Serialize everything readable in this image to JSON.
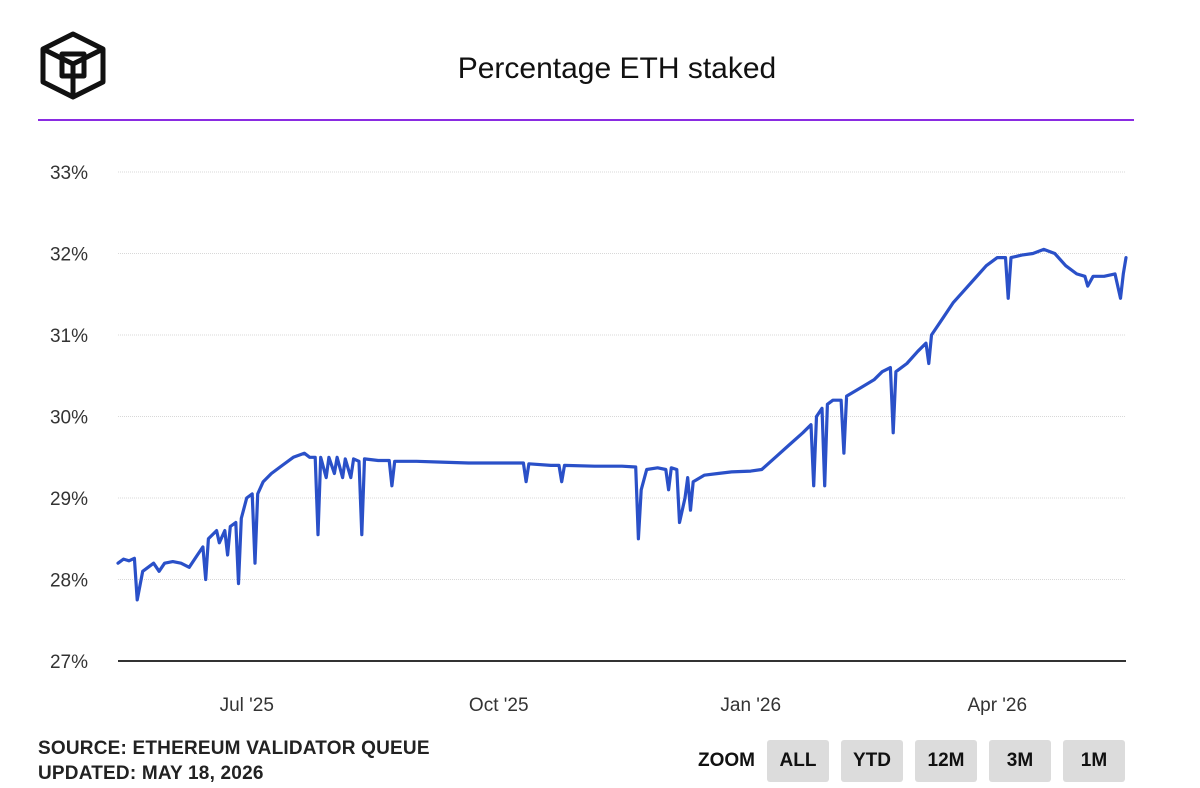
{
  "header": {
    "title": "Percentage ETH staked",
    "accent_color": "#8a2be2"
  },
  "footer": {
    "source": "SOURCE: ETHEREUM VALIDATOR QUEUE",
    "updated": "UPDATED: MAY 18, 2026"
  },
  "zoom": {
    "label": "ZOOM",
    "buttons": [
      "ALL",
      "YTD",
      "12M",
      "3M",
      "1M"
    ]
  },
  "chart_data": {
    "type": "line",
    "title": "Percentage ETH staked",
    "xlabel": "",
    "ylabel": "",
    "ylim": [
      27,
      33
    ],
    "y_ticks": [
      "33%",
      "32%",
      "31%",
      "30%",
      "29%",
      "28%",
      "27%"
    ],
    "x_ticks": [
      "Jul '25",
      "Oct '25",
      "Jan '26",
      "Apr '26"
    ],
    "x_tick_dates": [
      "2025-07-01",
      "2025-10-01",
      "2026-01-01",
      "2026-04-01"
    ],
    "grid": true,
    "legend": "none",
    "line_color": "#2a50c8",
    "series": [
      {
        "points": [
          [
            "2025-05-15",
            28.2
          ],
          [
            "2025-05-17",
            28.25
          ],
          [
            "2025-05-19",
            28.23
          ],
          [
            "2025-05-21",
            28.26
          ],
          [
            "2025-05-22",
            27.75
          ],
          [
            "2025-05-24",
            28.1
          ],
          [
            "2025-05-26",
            28.15
          ],
          [
            "2025-05-28",
            28.2
          ],
          [
            "2025-05-30",
            28.1
          ],
          [
            "2025-06-01",
            28.2
          ],
          [
            "2025-06-04",
            28.22
          ],
          [
            "2025-06-07",
            28.2
          ],
          [
            "2025-06-10",
            28.15
          ],
          [
            "2025-06-13",
            28.3
          ],
          [
            "2025-06-15",
            28.4
          ],
          [
            "2025-06-16",
            28.0
          ],
          [
            "2025-06-17",
            28.5
          ],
          [
            "2025-06-20",
            28.6
          ],
          [
            "2025-06-21",
            28.45
          ],
          [
            "2025-06-23",
            28.6
          ],
          [
            "2025-06-24",
            28.3
          ],
          [
            "2025-06-25",
            28.65
          ],
          [
            "2025-06-27",
            28.7
          ],
          [
            "2025-06-28",
            27.95
          ],
          [
            "2025-06-29",
            28.75
          ],
          [
            "2025-07-01",
            29.0
          ],
          [
            "2025-07-03",
            29.05
          ],
          [
            "2025-07-04",
            28.2
          ],
          [
            "2025-07-05",
            29.05
          ],
          [
            "2025-07-07",
            29.2
          ],
          [
            "2025-07-10",
            29.3
          ],
          [
            "2025-07-14",
            29.4
          ],
          [
            "2025-07-18",
            29.5
          ],
          [
            "2025-07-22",
            29.55
          ],
          [
            "2025-07-24",
            29.5
          ],
          [
            "2025-07-26",
            29.5
          ],
          [
            "2025-07-27",
            28.55
          ],
          [
            "2025-07-28",
            29.5
          ],
          [
            "2025-07-30",
            29.25
          ],
          [
            "2025-07-31",
            29.5
          ],
          [
            "2025-08-02",
            29.3
          ],
          [
            "2025-08-03",
            29.5
          ],
          [
            "2025-08-05",
            29.25
          ],
          [
            "2025-08-06",
            29.48
          ],
          [
            "2025-08-08",
            29.25
          ],
          [
            "2025-08-09",
            29.48
          ],
          [
            "2025-08-11",
            29.45
          ],
          [
            "2025-08-12",
            28.55
          ],
          [
            "2025-08-13",
            29.48
          ],
          [
            "2025-08-18",
            29.46
          ],
          [
            "2025-08-22",
            29.46
          ],
          [
            "2025-08-23",
            29.15
          ],
          [
            "2025-08-24",
            29.45
          ],
          [
            "2025-09-01",
            29.45
          ],
          [
            "2025-09-10",
            29.44
          ],
          [
            "2025-09-20",
            29.43
          ],
          [
            "2025-10-01",
            29.43
          ],
          [
            "2025-10-10",
            29.43
          ],
          [
            "2025-10-11",
            29.2
          ],
          [
            "2025-10-12",
            29.42
          ],
          [
            "2025-10-20",
            29.4
          ],
          [
            "2025-10-23",
            29.4
          ],
          [
            "2025-10-24",
            29.2
          ],
          [
            "2025-10-25",
            29.4
          ],
          [
            "2025-11-05",
            29.39
          ],
          [
            "2025-11-15",
            29.39
          ],
          [
            "2025-11-20",
            29.38
          ],
          [
            "2025-11-21",
            28.5
          ],
          [
            "2025-11-22",
            29.1
          ],
          [
            "2025-11-24",
            29.35
          ],
          [
            "2025-11-28",
            29.37
          ],
          [
            "2025-12-01",
            29.35
          ],
          [
            "2025-12-02",
            29.1
          ],
          [
            "2025-12-03",
            29.37
          ],
          [
            "2025-12-05",
            29.35
          ],
          [
            "2025-12-06",
            28.7
          ],
          [
            "2025-12-08",
            29.0
          ],
          [
            "2025-12-09",
            29.25
          ],
          [
            "2025-12-10",
            28.85
          ],
          [
            "2025-12-11",
            29.2
          ],
          [
            "2025-12-15",
            29.28
          ],
          [
            "2025-12-20",
            29.3
          ],
          [
            "2025-12-25",
            29.32
          ],
          [
            "2026-01-01",
            29.33
          ],
          [
            "2026-01-05",
            29.35
          ],
          [
            "2026-01-10",
            29.5
          ],
          [
            "2026-01-15",
            29.65
          ],
          [
            "2026-01-20",
            29.8
          ],
          [
            "2026-01-23",
            29.9
          ],
          [
            "2026-01-24",
            29.15
          ],
          [
            "2026-01-25",
            30.0
          ],
          [
            "2026-01-27",
            30.1
          ],
          [
            "2026-01-28",
            29.15
          ],
          [
            "2026-01-29",
            30.15
          ],
          [
            "2026-01-31",
            30.2
          ],
          [
            "2026-02-03",
            30.2
          ],
          [
            "2026-02-04",
            29.55
          ],
          [
            "2026-02-05",
            30.25
          ],
          [
            "2026-02-10",
            30.35
          ],
          [
            "2026-02-15",
            30.45
          ],
          [
            "2026-02-18",
            30.55
          ],
          [
            "2026-02-21",
            30.6
          ],
          [
            "2026-02-22",
            29.8
          ],
          [
            "2026-02-23",
            30.55
          ],
          [
            "2026-02-27",
            30.65
          ],
          [
            "2026-03-03",
            30.8
          ],
          [
            "2026-03-06",
            30.9
          ],
          [
            "2026-03-07",
            30.65
          ],
          [
            "2026-03-08",
            31.0
          ],
          [
            "2026-03-12",
            31.2
          ],
          [
            "2026-03-16",
            31.4
          ],
          [
            "2026-03-20",
            31.55
          ],
          [
            "2026-03-24",
            31.7
          ],
          [
            "2026-03-28",
            31.85
          ],
          [
            "2026-04-01",
            31.95
          ],
          [
            "2026-04-04",
            31.95
          ],
          [
            "2026-04-05",
            31.45
          ],
          [
            "2026-04-06",
            31.95
          ],
          [
            "2026-04-10",
            31.98
          ],
          [
            "2026-04-14",
            32.0
          ],
          [
            "2026-04-18",
            32.05
          ],
          [
            "2026-04-22",
            32.0
          ],
          [
            "2026-04-26",
            31.85
          ],
          [
            "2026-04-30",
            31.75
          ],
          [
            "2026-05-03",
            31.72
          ],
          [
            "2026-05-04",
            31.6
          ],
          [
            "2026-05-06",
            31.72
          ],
          [
            "2026-05-10",
            31.72
          ],
          [
            "2026-05-14",
            31.75
          ],
          [
            "2026-05-16",
            31.45
          ],
          [
            "2026-05-17",
            31.75
          ],
          [
            "2026-05-18",
            31.95
          ]
        ]
      }
    ]
  }
}
